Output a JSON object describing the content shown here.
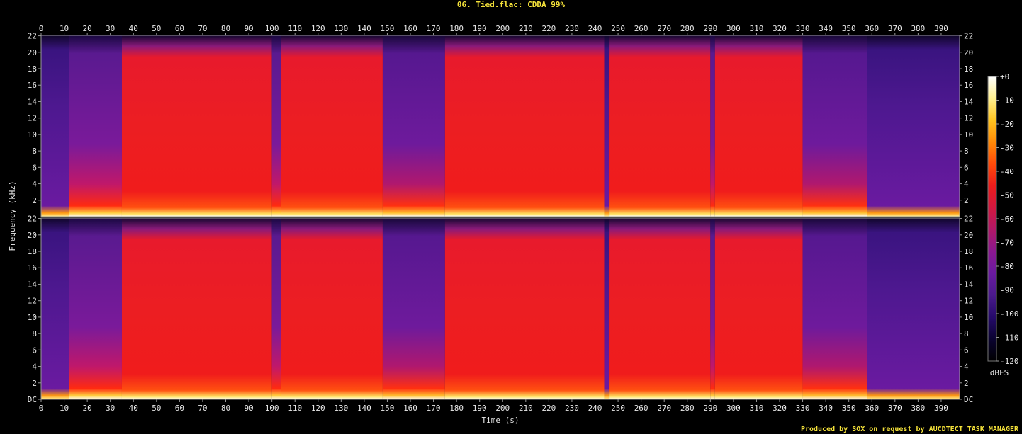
{
  "title": "06. Tied.flac: CDDA 99%",
  "credit": "Produced by SOX on request by AUCDTECT TASK MANAGER",
  "chart_data": {
    "type": "heatmap",
    "title": "06. Tied.flac: CDDA 99%",
    "xlabel": "Time (s)",
    "ylabel": "Frequency (kHz)",
    "xlim": [
      0,
      398
    ],
    "ylim": [
      0,
      22.05
    ],
    "x_ticks": [
      "0",
      "10",
      "20",
      "30",
      "40",
      "50",
      "60",
      "70",
      "80",
      "90",
      "100",
      "110",
      "120",
      "130",
      "140",
      "150",
      "160",
      "170",
      "180",
      "190",
      "200",
      "210",
      "220",
      "230",
      "240",
      "250",
      "260",
      "270",
      "280",
      "290",
      "300",
      "310",
      "320",
      "330",
      "340",
      "350",
      "360",
      "370",
      "380",
      "390"
    ],
    "y_ticks": [
      "DC",
      "2",
      "4",
      "6",
      "8",
      "10",
      "12",
      "14",
      "16",
      "18",
      "20",
      "22"
    ],
    "channels": 2,
    "colorbar": {
      "label": "dBFS",
      "ticks": [
        "+0",
        "-10",
        "-20",
        "-30",
        "-40",
        "-50",
        "-60",
        "-70",
        "-80",
        "-90",
        "-100",
        "-110",
        "-120"
      ],
      "range": [
        -120,
        0
      ],
      "colors": [
        "#000000",
        "#0a0330",
        "#250a6a",
        "#4a1a8c",
        "#6a1aa0",
        "#8a1890",
        "#b01868",
        "#d01840",
        "#ec1c1c",
        "#ff4a0a",
        "#ff8a08",
        "#ffc420",
        "#fff090",
        "#ffffff"
      ]
    },
    "segments": [
      {
        "start": 0,
        "end": 12,
        "level": "quiet"
      },
      {
        "start": 12,
        "end": 35,
        "level": "medium"
      },
      {
        "start": 35,
        "end": 100,
        "level": "loud"
      },
      {
        "start": 100,
        "end": 104,
        "level": "medium"
      },
      {
        "start": 104,
        "end": 148,
        "level": "loud"
      },
      {
        "start": 148,
        "end": 175,
        "level": "medium-low"
      },
      {
        "start": 175,
        "end": 244,
        "level": "loud"
      },
      {
        "start": 244,
        "end": 246,
        "level": "quiet"
      },
      {
        "start": 246,
        "end": 290,
        "level": "loud"
      },
      {
        "start": 290,
        "end": 292,
        "level": "medium"
      },
      {
        "start": 292,
        "end": 330,
        "level": "loud"
      },
      {
        "start": 330,
        "end": 358,
        "level": "medium-low"
      },
      {
        "start": 358,
        "end": 398,
        "level": "quiet"
      }
    ]
  }
}
